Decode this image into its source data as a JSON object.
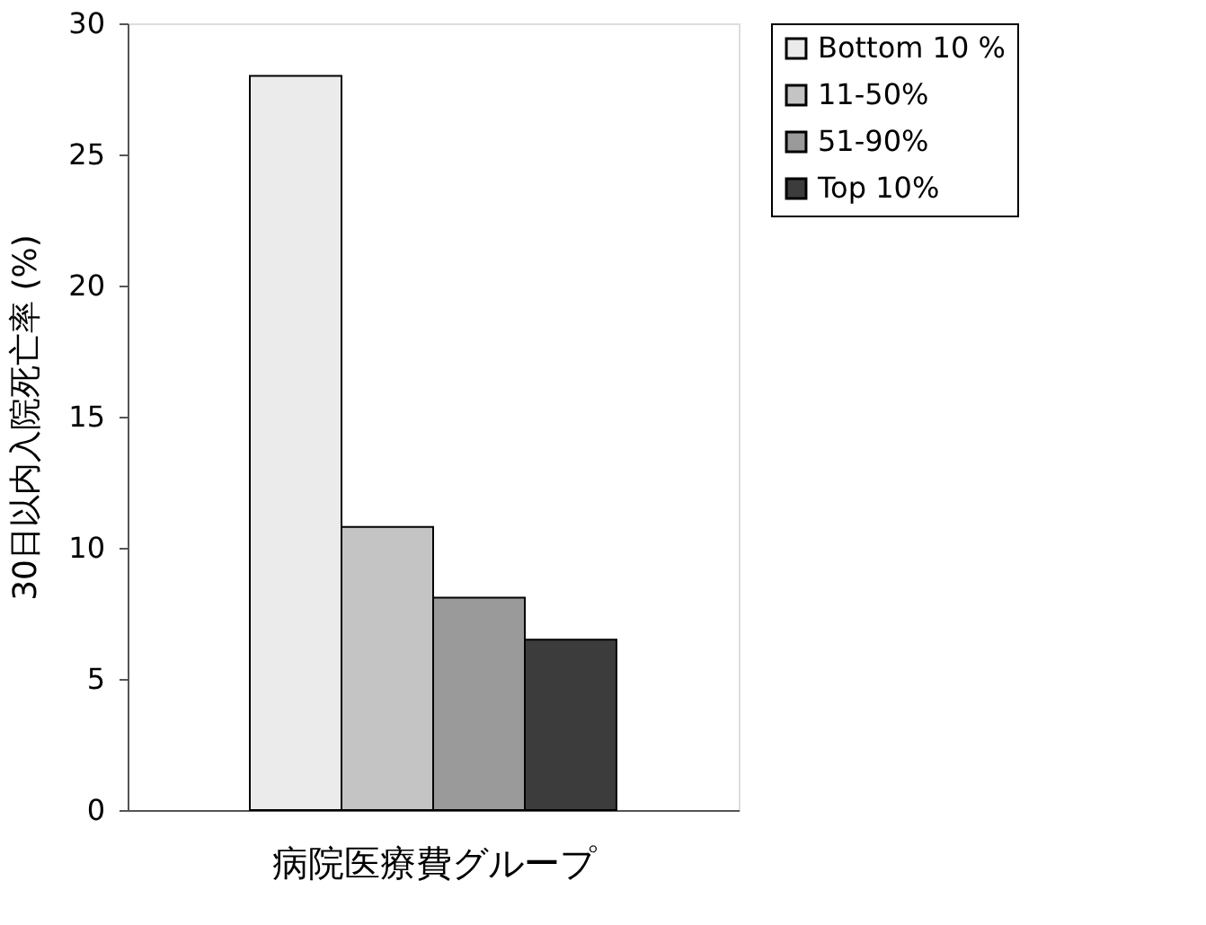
{
  "chart_data": {
    "type": "bar",
    "xlabel": "病院医療費グループ",
    "ylabel": "30日以内入院死亡率 (%)",
    "categories": [
      null
    ],
    "series": [
      {
        "name": "Bottom 10 %",
        "color": "#ebebeb",
        "values": [
          28
        ]
      },
      {
        "name": "11-50%",
        "color": "#c4c4c4",
        "values": [
          10.8
        ]
      },
      {
        "name": "51-90%",
        "color": "#9a9a9a",
        "values": [
          8.1
        ]
      },
      {
        "name": "Top 10%",
        "color": "#3c3c3c",
        "values": [
          6.5
        ]
      }
    ],
    "ylim": [
      0,
      30
    ],
    "yticks": [
      0,
      5,
      10,
      15,
      20,
      25,
      30
    ],
    "grid": false,
    "legend": "right",
    "tick_labels": "y"
  }
}
